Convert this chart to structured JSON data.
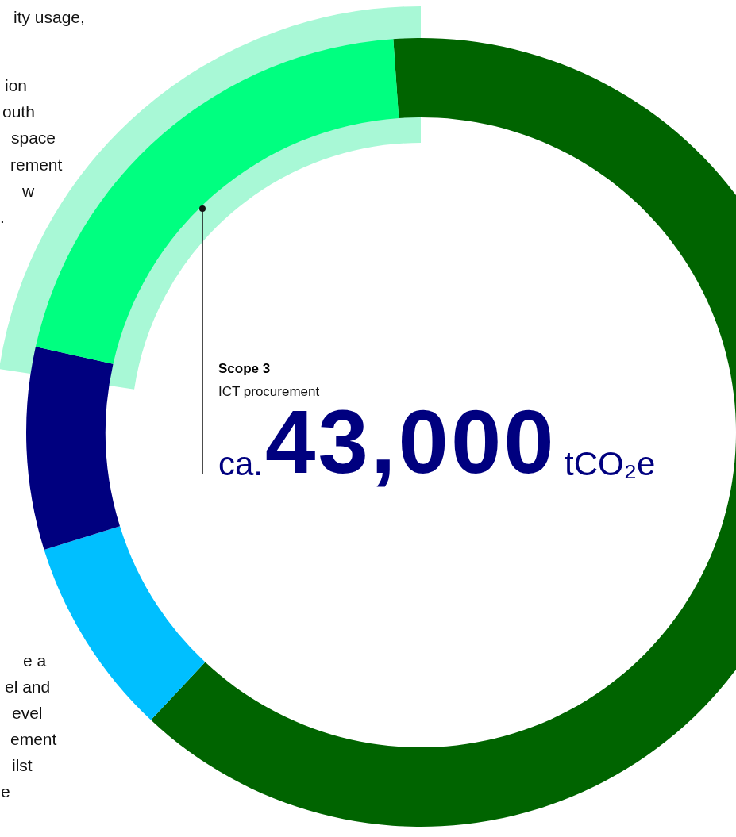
{
  "chart_data": {
    "type": "donut",
    "categories": [
      null,
      null,
      null,
      null
    ],
    "values": [
      63.1,
      8.2,
      8.3,
      20.4
    ],
    "colors": [
      "#006400",
      "#00bfff",
      "#00007f",
      "#00ff80"
    ],
    "annotations": [
      "Scope 3",
      "ICT procurement",
      "ca.",
      "43,000",
      "tCO₂e",
      "ity usage,",
      "ion",
      "outh",
      "space",
      "rement",
      "w",
      ".",
      "e a",
      "el and",
      "evel",
      "ement",
      "ilst",
      "e"
    ]
  }
}
